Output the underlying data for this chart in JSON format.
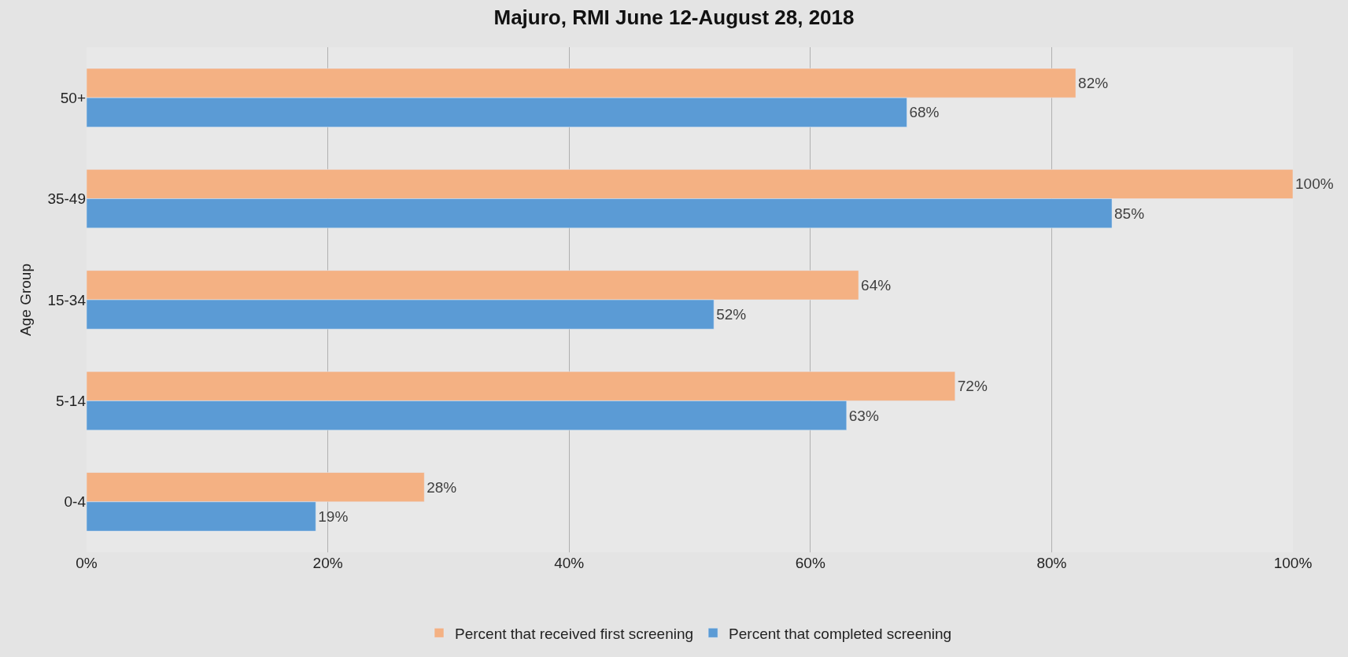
{
  "chart_data": {
    "type": "bar",
    "orientation": "horizontal",
    "title": "Majuro, RMI June 12-August 28, 2018",
    "ylabel": "Age Group",
    "categories": [
      "50+",
      "35-49",
      "15-34",
      "5-14",
      "0-4"
    ],
    "series": [
      {
        "name": "Percent that received first screening",
        "color": "#f4b183",
        "values": [
          82,
          100,
          64,
          72,
          28
        ],
        "value_labels": [
          "82%",
          "100%",
          "64%",
          "72%",
          "28%"
        ]
      },
      {
        "name": "Percent that completed screening",
        "color": "#5b9bd5",
        "values": [
          68,
          85,
          52,
          63,
          19
        ],
        "value_labels": [
          "68%",
          "85%",
          "52%",
          "63%",
          "19%"
        ]
      }
    ],
    "xlim": [
      0,
      100
    ],
    "xticks": [
      {
        "value": 0,
        "label": "0%"
      },
      {
        "value": 20,
        "label": "20%"
      },
      {
        "value": 40,
        "label": "40%"
      },
      {
        "value": 60,
        "label": "60%"
      },
      {
        "value": 80,
        "label": "80%"
      },
      {
        "value": 100,
        "label": "100%"
      }
    ],
    "grid": "x",
    "legend": "bottom"
  }
}
